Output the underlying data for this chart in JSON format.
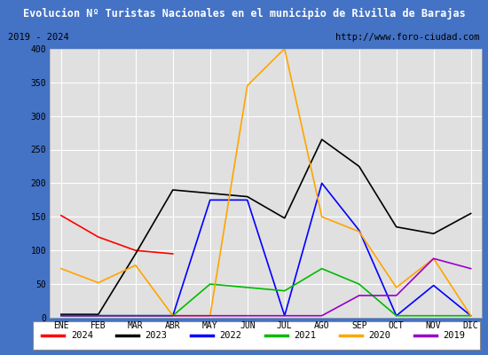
{
  "title": "Evolucion Nº Turistas Nacionales en el municipio de Rivilla de Barajas",
  "subtitle_left": "2019 - 2024",
  "subtitle_right": "http://www.foro-ciudad.com",
  "months": [
    "ENE",
    "FEB",
    "MAR",
    "ABR",
    "MAY",
    "JUN",
    "JUL",
    "AGO",
    "SEP",
    "OCT",
    "NOV",
    "DIC"
  ],
  "series": {
    "2024": [
      152,
      120,
      100,
      95,
      null,
      null,
      null,
      null,
      null,
      null,
      null,
      null
    ],
    "2023": [
      5,
      5,
      95,
      190,
      185,
      180,
      148,
      265,
      225,
      135,
      125,
      155
    ],
    "2022": [
      3,
      3,
      3,
      3,
      175,
      175,
      3,
      200,
      130,
      3,
      48,
      3
    ],
    "2021": [
      3,
      3,
      3,
      3,
      50,
      45,
      40,
      73,
      50,
      3,
      3,
      3
    ],
    "2020": [
      73,
      52,
      78,
      3,
      3,
      345,
      400,
      150,
      128,
      45,
      88,
      3
    ],
    "2019": [
      3,
      3,
      3,
      3,
      3,
      3,
      3,
      3,
      33,
      33,
      88,
      73
    ]
  },
  "colors": {
    "2024": "#ff0000",
    "2023": "#000000",
    "2022": "#0000ff",
    "2021": "#00bb00",
    "2020": "#ffa500",
    "2019": "#9900cc"
  },
  "ylim": [
    0,
    400
  ],
  "yticks": [
    0,
    50,
    100,
    150,
    200,
    250,
    300,
    350,
    400
  ],
  "title_bg": "#4472c4",
  "title_color": "#ffffff",
  "plot_bg": "#e0e0e0",
  "grid_color": "#ffffff",
  "border_color": "#4472c4",
  "frame_bg": "#ffffff"
}
